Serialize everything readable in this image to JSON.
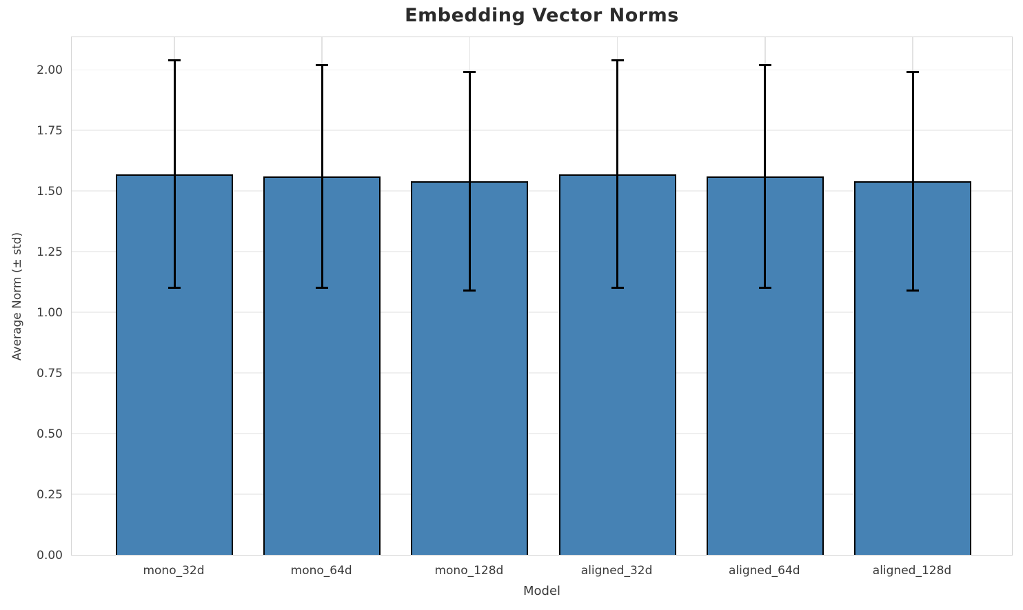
{
  "chart_data": {
    "type": "bar",
    "title": "Embedding Vector Norms",
    "xlabel": "Model",
    "ylabel": "Average Norm (± std)",
    "categories": [
      "mono_32d",
      "mono_64d",
      "mono_128d",
      "aligned_32d",
      "aligned_64d",
      "aligned_128d"
    ],
    "values": [
      1.57,
      1.56,
      1.54,
      1.57,
      1.56,
      1.54
    ],
    "errors": [
      0.47,
      0.46,
      0.45,
      0.47,
      0.46,
      0.45
    ],
    "ylim": [
      0,
      2.14
    ],
    "yticks": [
      "0.00",
      "0.25",
      "0.50",
      "0.75",
      "1.00",
      "1.25",
      "1.50",
      "1.75",
      "2.00"
    ],
    "ytick_values": [
      0,
      0.25,
      0.5,
      0.75,
      1.0,
      1.25,
      1.5,
      1.75,
      2.0
    ],
    "grid": true,
    "legend_position": "none",
    "colors": {
      "bar_fill": "#4682B4",
      "bar_edge": "#000000",
      "error_bar": "#000000",
      "grid_h": "#efefef",
      "grid_v": "#e2e2e2",
      "spine": "#d4d4d4",
      "title_text": "#2b2b2b",
      "tick_text": "#3a3a3a"
    }
  }
}
